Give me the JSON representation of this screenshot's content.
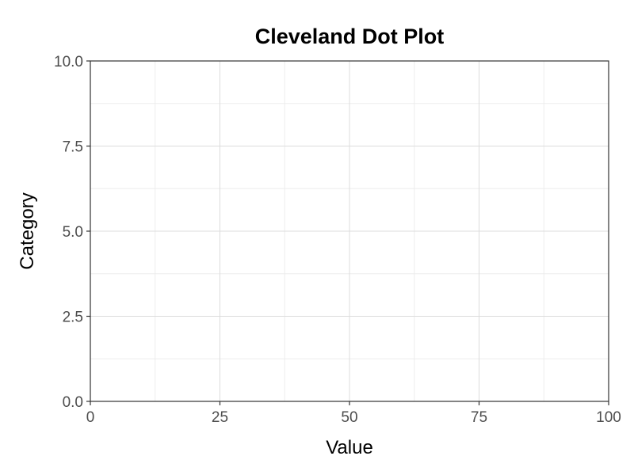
{
  "chart_data": {
    "type": "scatter",
    "title": "Cleveland Dot Plot",
    "xlabel": "Value",
    "ylabel": "Category",
    "xlim": [
      0,
      100
    ],
    "ylim": [
      0,
      10
    ],
    "x_ticks": [
      0,
      25,
      50,
      75,
      100
    ],
    "x_tick_labels": [
      "0",
      "25",
      "50",
      "75",
      "100"
    ],
    "y_ticks": [
      0,
      2.5,
      5,
      7.5,
      10
    ],
    "y_tick_labels": [
      "0.0",
      "2.5",
      "5.0",
      "7.5",
      "10.0"
    ],
    "series": [],
    "grid": true,
    "legend": "none",
    "colors": {
      "major_grid": "#dcdcdc",
      "minor_grid": "#ededed",
      "axis_line": "#333333",
      "tick_text": "#4d4d4d"
    }
  }
}
